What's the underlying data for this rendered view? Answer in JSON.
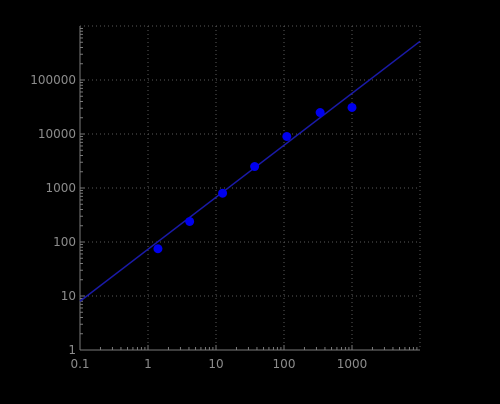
{
  "chart_data": {
    "type": "scatter",
    "x_scale": "log",
    "y_scale": "log",
    "xlim": [
      0.1,
      10000
    ],
    "ylim": [
      1,
      1000000
    ],
    "grid": true,
    "x_ticks": [
      0.1,
      1,
      10,
      100,
      1000
    ],
    "x_tick_labels": [
      "0.1",
      "1",
      "10",
      "100",
      "1000"
    ],
    "y_ticks": [
      1,
      10,
      100,
      1000,
      10000,
      100000
    ],
    "y_tick_labels": [
      "1",
      "10",
      "100",
      "1000",
      "10000",
      "100000"
    ],
    "title": "",
    "xlabel": "",
    "ylabel": "",
    "series": [
      {
        "points": [
          {
            "x": 1.4,
            "y": 75
          },
          {
            "x": 4.1,
            "y": 240
          },
          {
            "x": 12.5,
            "y": 800
          },
          {
            "x": 37,
            "y": 2500
          },
          {
            "x": 110,
            "y": 9000
          },
          {
            "x": 340,
            "y": 25000
          },
          {
            "x": 1000,
            "y": 31000
          }
        ]
      }
    ],
    "fit_line": {
      "points": [
        {
          "x": 0.1,
          "y": 8
        },
        {
          "x": 10000,
          "y": 520000
        }
      ]
    },
    "colors": {
      "points": "#0000ee",
      "fit_line": "#1a1aa8",
      "grid": "#5a5a5a",
      "axis": "#7a7a7a",
      "tick_text": "#8c8c8c"
    }
  }
}
